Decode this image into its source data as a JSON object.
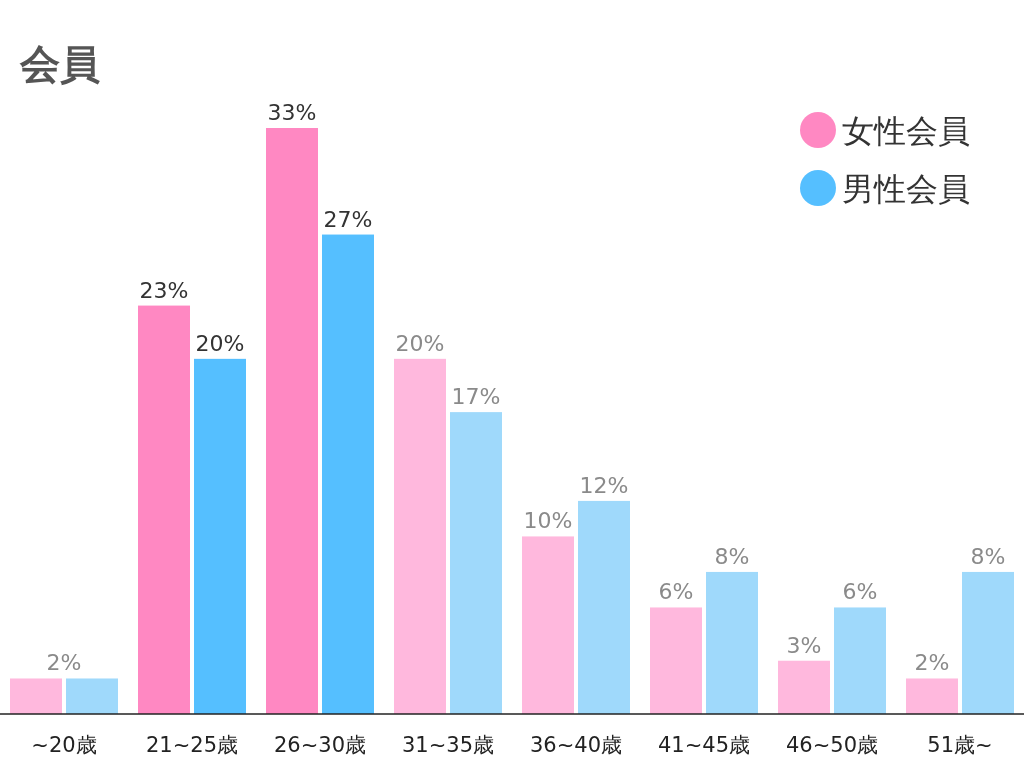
{
  "chart_data": {
    "type": "bar",
    "title": "会員",
    "categories": [
      "~20歳",
      "21~25歳",
      "26~30歳",
      "31~35歳",
      "36~40歳",
      "41~45歳",
      "46~50歳",
      "51歳~"
    ],
    "series": [
      {
        "name": "女性会員",
        "color": "#ff88c2",
        "colors": [
          "#ffb8dd",
          "#ff88c2",
          "#ff88c2",
          "#ffb8dd",
          "#ffb8dd",
          "#ffb8dd",
          "#ffb8dd",
          "#ffb8dd"
        ],
        "values": [
          2,
          23,
          33,
          20,
          10,
          6,
          3,
          2
        ],
        "value_labels": [
          null,
          "23%",
          "33%",
          "20%",
          "10%",
          "6%",
          "3%",
          "2%"
        ]
      },
      {
        "name": "男性会員",
        "color": "#55bfff",
        "colors": [
          "#9fd9fb",
          "#55bfff",
          "#55bfff",
          "#9fd9fb",
          "#9fd9fb",
          "#9fd9fb",
          "#9fd9fb",
          "#9fd9fb"
        ],
        "values": [
          2,
          20,
          27,
          17,
          12,
          8,
          6,
          8
        ],
        "value_labels": [
          null,
          "20%",
          "27%",
          "17%",
          "12%",
          "8%",
          "6%",
          "8%"
        ]
      }
    ],
    "annotations": [
      {
        "text": "2%",
        "x": "~20歳",
        "y": 2
      }
    ],
    "legend": "top right"
  }
}
